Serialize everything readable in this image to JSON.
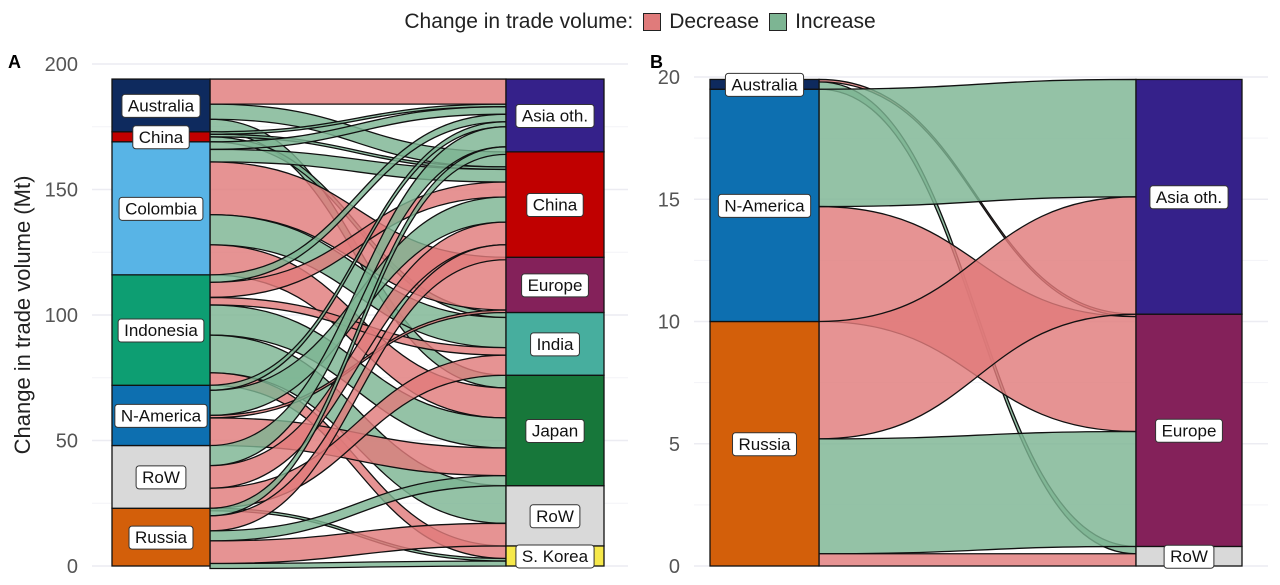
{
  "legend": {
    "title": "Change in trade volume:",
    "items": [
      {
        "label": "Decrease",
        "color": "#e07b7b"
      },
      {
        "label": "Increase",
        "color": "#7db593"
      }
    ]
  },
  "colors": {
    "decrease": "#e07b7b",
    "increase": "#7db593",
    "node_border": "#111111",
    "grid": "#ececf2"
  },
  "chart_data": [
    {
      "type": "alluvial",
      "panel_label": "A",
      "ylabel": "Change in trade volume (Mt)",
      "ylim": [
        0,
        200
      ],
      "yticks": [
        0,
        50,
        100,
        150,
        200
      ],
      "grid": true,
      "left_nodes": [
        {
          "name": "Russia",
          "value": 23,
          "color": "#d35f0a"
        },
        {
          "name": "RoW",
          "value": 25,
          "color": "#d9d9d9"
        },
        {
          "name": "N-America",
          "value": 24,
          "color": "#0d6fb0"
        },
        {
          "name": "Indonesia",
          "value": 44,
          "color": "#0d9e72"
        },
        {
          "name": "Colombia",
          "value": 53,
          "color": "#58b4e6"
        },
        {
          "name": "China",
          "value": 4,
          "color": "#c00000"
        },
        {
          "name": "Australia",
          "value": 21,
          "color": "#0e2a5e"
        }
      ],
      "right_nodes": [
        {
          "name": "S. Korea",
          "value": 8,
          "color": "#f6e84a"
        },
        {
          "name": "RoW",
          "value": 24,
          "color": "#d9d9d9"
        },
        {
          "name": "Japan",
          "value": 44,
          "color": "#17773a"
        },
        {
          "name": "India",
          "value": 25,
          "color": "#47ae9e"
        },
        {
          "name": "Europe",
          "value": 22,
          "color": "#84215a"
        },
        {
          "name": "China",
          "value": 42,
          "color": "#c00000"
        },
        {
          "name": "Asia oth.",
          "value": 29,
          "color": "#35218a"
        }
      ],
      "flows": [
        {
          "from": "Australia",
          "to": "Asia oth.",
          "value": 10,
          "change": "decrease"
        },
        {
          "from": "Australia",
          "to": "China",
          "value": 6,
          "change": "increase"
        },
        {
          "from": "Australia",
          "to": "Japan",
          "value": 5,
          "change": "increase"
        },
        {
          "from": "China",
          "to": "Asia oth.",
          "value": 1,
          "change": "increase"
        },
        {
          "from": "China",
          "to": "China",
          "value": 1,
          "change": "increase"
        },
        {
          "from": "China",
          "to": "India",
          "value": 2,
          "change": "increase"
        },
        {
          "from": "Colombia",
          "to": "Asia oth.",
          "value": 3,
          "change": "increase"
        },
        {
          "from": "Colombia",
          "to": "China",
          "value": 5,
          "change": "increase"
        },
        {
          "from": "Colombia",
          "to": "Europe",
          "value": 21,
          "change": "decrease"
        },
        {
          "from": "Colombia",
          "to": "India",
          "value": 12,
          "change": "increase"
        },
        {
          "from": "Colombia",
          "to": "Japan",
          "value": 12,
          "change": "decrease"
        },
        {
          "from": "Indonesia",
          "to": "Asia oth.",
          "value": 3,
          "change": "increase"
        },
        {
          "from": "Indonesia",
          "to": "China",
          "value": 6,
          "change": "decrease"
        },
        {
          "from": "Indonesia",
          "to": "India",
          "value": 3,
          "change": "decrease"
        },
        {
          "from": "Indonesia",
          "to": "Japan",
          "value": 12,
          "change": "increase"
        },
        {
          "from": "Indonesia",
          "to": "RoW",
          "value": 15,
          "change": "increase"
        },
        {
          "from": "Indonesia",
          "to": "S. Korea",
          "value": 5,
          "change": "decrease"
        },
        {
          "from": "N-America",
          "to": "Asia oth.",
          "value": 2,
          "change": "increase"
        },
        {
          "from": "N-America",
          "to": "China",
          "value": 10,
          "change": "increase"
        },
        {
          "from": "N-America",
          "to": "Europe",
          "value": 1,
          "change": "decrease"
        },
        {
          "from": "N-America",
          "to": "Japan",
          "value": 11,
          "change": "decrease"
        },
        {
          "from": "RoW",
          "to": "Asia oth.",
          "value": 8,
          "change": "increase"
        },
        {
          "from": "RoW",
          "to": "China",
          "value": 9,
          "change": "decrease"
        },
        {
          "from": "RoW",
          "to": "India",
          "value": 8,
          "change": "decrease"
        },
        {
          "from": "RoW",
          "to": "S. Korea",
          "value": 1,
          "change": "increase"
        },
        {
          "from": "Russia",
          "to": "Asia oth.",
          "value": 3,
          "change": "increase"
        },
        {
          "from": "Russia",
          "to": "China",
          "value": 6,
          "change": "decrease"
        },
        {
          "from": "Russia",
          "to": "Japan",
          "value": 4,
          "change": "increase"
        },
        {
          "from": "Russia",
          "to": "RoW",
          "value": 9,
          "change": "decrease"
        },
        {
          "from": "Russia",
          "to": "S. Korea",
          "value": 2,
          "change": "increase"
        }
      ]
    },
    {
      "type": "alluvial",
      "panel_label": "B",
      "ylabel": "",
      "ylim": [
        0,
        20
      ],
      "yticks": [
        0,
        5,
        10,
        15,
        20
      ],
      "grid": true,
      "left_nodes": [
        {
          "name": "Russia",
          "value": 10,
          "color": "#d35f0a"
        },
        {
          "name": "N-America",
          "value": 9.5,
          "color": "#0d6fb0"
        },
        {
          "name": "Australia",
          "value": 0.4,
          "color": "#0e2a5e"
        }
      ],
      "right_nodes": [
        {
          "name": "RoW",
          "value": 0.8,
          "color": "#d9d9d9"
        },
        {
          "name": "Europe",
          "value": 9.5,
          "color": "#84215a"
        },
        {
          "name": "Asia oth.",
          "value": 9.6,
          "color": "#35218a"
        }
      ],
      "flows": [
        {
          "from": "Australia",
          "to": "RoW",
          "value": 0.3,
          "change": "increase"
        },
        {
          "from": "Australia",
          "to": "Europe",
          "value": 0.1,
          "change": "decrease"
        },
        {
          "from": "N-America",
          "to": "Asia oth.",
          "value": 4.8,
          "change": "increase"
        },
        {
          "from": "N-America",
          "to": "Europe",
          "value": 4.7,
          "change": "decrease"
        },
        {
          "from": "Russia",
          "to": "Asia oth.",
          "value": 4.8,
          "change": "decrease"
        },
        {
          "from": "Russia",
          "to": "Europe",
          "value": 4.7,
          "change": "increase"
        },
        {
          "from": "Russia",
          "to": "RoW",
          "value": 0.5,
          "change": "decrease"
        }
      ]
    }
  ]
}
